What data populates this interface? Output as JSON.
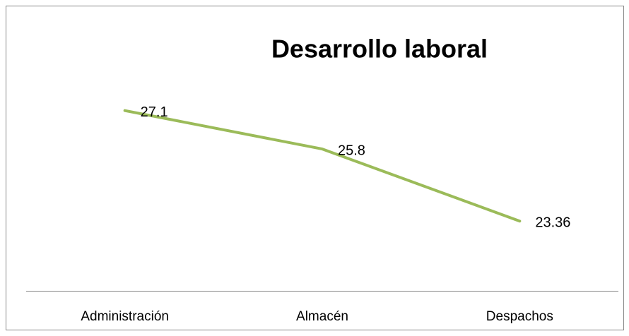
{
  "chart_data": {
    "type": "line",
    "title": "Desarrollo laboral",
    "categories": [
      "Administración",
      "Almacén",
      "Despachos"
    ],
    "series": [
      {
        "name": "Desarrollo laboral",
        "color": "#9bbb59",
        "values": [
          27.1,
          25.8,
          23.36
        ]
      }
    ],
    "ylim": [
      21,
      28
    ],
    "grid": false
  }
}
